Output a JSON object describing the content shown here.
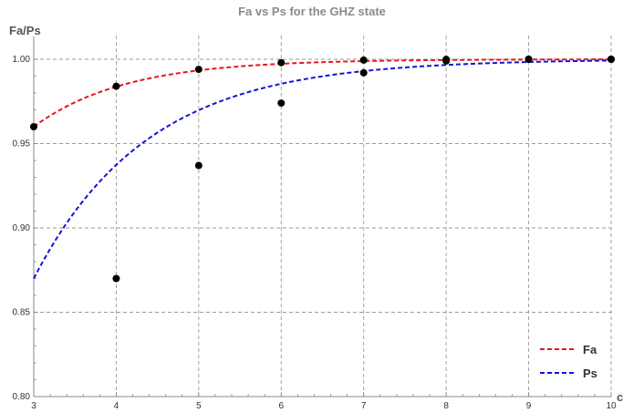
{
  "chart_data": {
    "type": "line",
    "title": "Fa vs Ps for the GHZ state",
    "ylabel": "Fa/Ps",
    "xlabel": "",
    "x_axis_end_label": "c",
    "xlim": [
      3,
      10
    ],
    "ylim": [
      0.8,
      1.0
    ],
    "x_ticks": [
      3,
      4,
      5,
      6,
      7,
      8,
      9,
      10
    ],
    "y_ticks": [
      "0.80",
      "0.85",
      "0.90",
      "0.95",
      "1.00"
    ],
    "grid": true,
    "legend_position": "bottom-right",
    "series": [
      {
        "name": "Fa",
        "color": "#e8151b",
        "style": "dashed",
        "x": [
          3,
          4,
          5,
          6,
          7,
          8,
          9,
          10
        ],
        "values": [
          0.96,
          0.984,
          0.994,
          0.998,
          0.9995,
          0.9999,
          1.0,
          1.0
        ]
      },
      {
        "name": "Ps",
        "color": "#1414d8",
        "style": "dashed",
        "x": [
          4,
          5,
          6,
          7,
          8,
          9,
          10
        ],
        "values": [
          0.87,
          0.937,
          0.974,
          0.992,
          0.999,
          1.0,
          1.0
        ]
      }
    ],
    "curves": [
      {
        "series": "Fa",
        "c": 0.04,
        "k": 0.9
      },
      {
        "series": "Ps",
        "c": 0.13,
        "k": 0.73
      }
    ]
  }
}
